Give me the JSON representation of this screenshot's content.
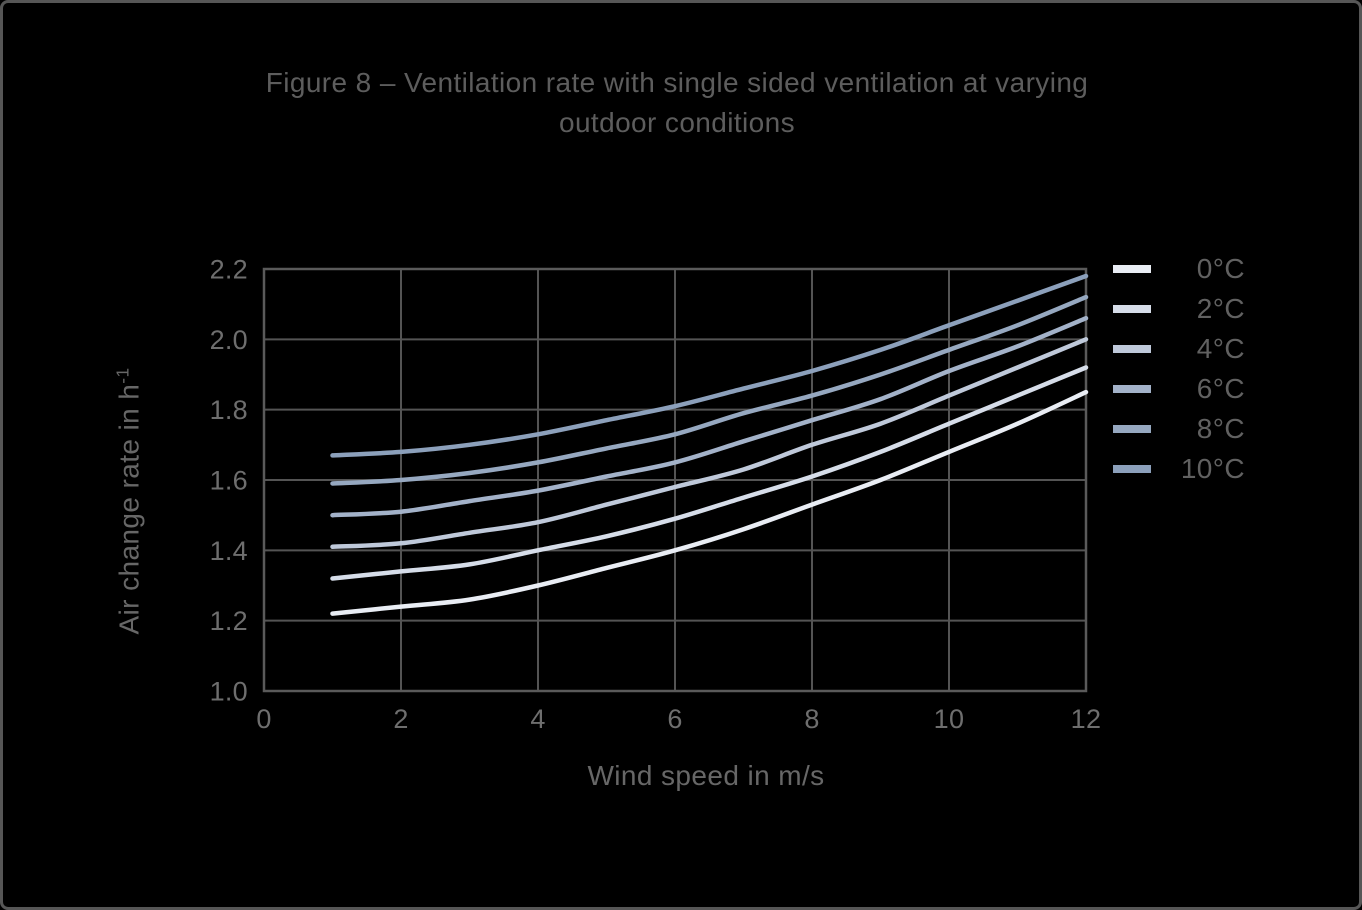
{
  "figure": {
    "title": "Figure 8 – Ventilation rate with single sided ventilation at varying outdoor conditions",
    "title_lines": [
      "Figure 8 – Ventilation rate with single sided ventilation at varying",
      "outdoor conditions"
    ]
  },
  "colors": {
    "background": "#000000",
    "frame_border": "#565656",
    "plot_border": "#5a5a5a",
    "grid": "#545454",
    "title_text": "#5d5d5d",
    "tick_text": "#6e6e6e",
    "axis_title_text": "#676767",
    "legend_text": "#616161"
  },
  "axes": {
    "x_title": "Wind speed in m/s",
    "y_title_base": "Air change rate in h",
    "y_title_sup": "-1"
  },
  "chart_data": {
    "type": "line",
    "title": "Figure 8 – Ventilation rate with single sided ventilation at varying outdoor conditions",
    "xlabel": "Wind speed in m/s",
    "ylabel": "Air change rate in h⁻¹",
    "xlim": [
      0,
      12
    ],
    "ylim": [
      1.0,
      2.2
    ],
    "x_ticks": [
      0,
      2,
      4,
      6,
      8,
      10,
      12
    ],
    "x_tick_labels": [
      "0",
      "2",
      "4",
      "6",
      "8",
      "10",
      "12"
    ],
    "y_ticks": [
      1.0,
      1.2,
      1.4,
      1.6,
      1.8,
      2.0,
      2.2
    ],
    "y_tick_labels": [
      "1.0",
      "1.2",
      "1.4",
      "1.6",
      "1.8",
      "2.0",
      "2.2"
    ],
    "grid": true,
    "legend_position": "right-outside",
    "x": [
      1,
      2,
      3,
      4,
      5,
      6,
      7,
      8,
      9,
      10,
      11,
      12
    ],
    "series": [
      {
        "name": "0°C",
        "color": "#e9edf4",
        "values": [
          1.22,
          1.24,
          1.26,
          1.3,
          1.35,
          1.4,
          1.46,
          1.53,
          1.6,
          1.68,
          1.76,
          1.85
        ]
      },
      {
        "name": "2°C",
        "color": "#d6dde9",
        "values": [
          1.32,
          1.34,
          1.36,
          1.4,
          1.44,
          1.49,
          1.55,
          1.61,
          1.68,
          1.76,
          1.84,
          1.92
        ]
      },
      {
        "name": "4°C",
        "color": "#bfc9da",
        "values": [
          1.41,
          1.42,
          1.45,
          1.48,
          1.53,
          1.58,
          1.63,
          1.7,
          1.76,
          1.84,
          1.92,
          2.0
        ]
      },
      {
        "name": "6°C",
        "color": "#a3b2c9",
        "values": [
          1.5,
          1.51,
          1.54,
          1.57,
          1.61,
          1.65,
          1.71,
          1.77,
          1.83,
          1.91,
          1.98,
          2.06
        ]
      },
      {
        "name": "8°C",
        "color": "#96a8c0",
        "values": [
          1.59,
          1.6,
          1.62,
          1.65,
          1.69,
          1.73,
          1.79,
          1.84,
          1.9,
          1.97,
          2.04,
          2.12
        ]
      },
      {
        "name": "10°C",
        "color": "#8ca0bb",
        "values": [
          1.67,
          1.68,
          1.7,
          1.73,
          1.77,
          1.81,
          1.86,
          1.91,
          1.97,
          2.04,
          2.11,
          2.18
        ]
      }
    ]
  }
}
